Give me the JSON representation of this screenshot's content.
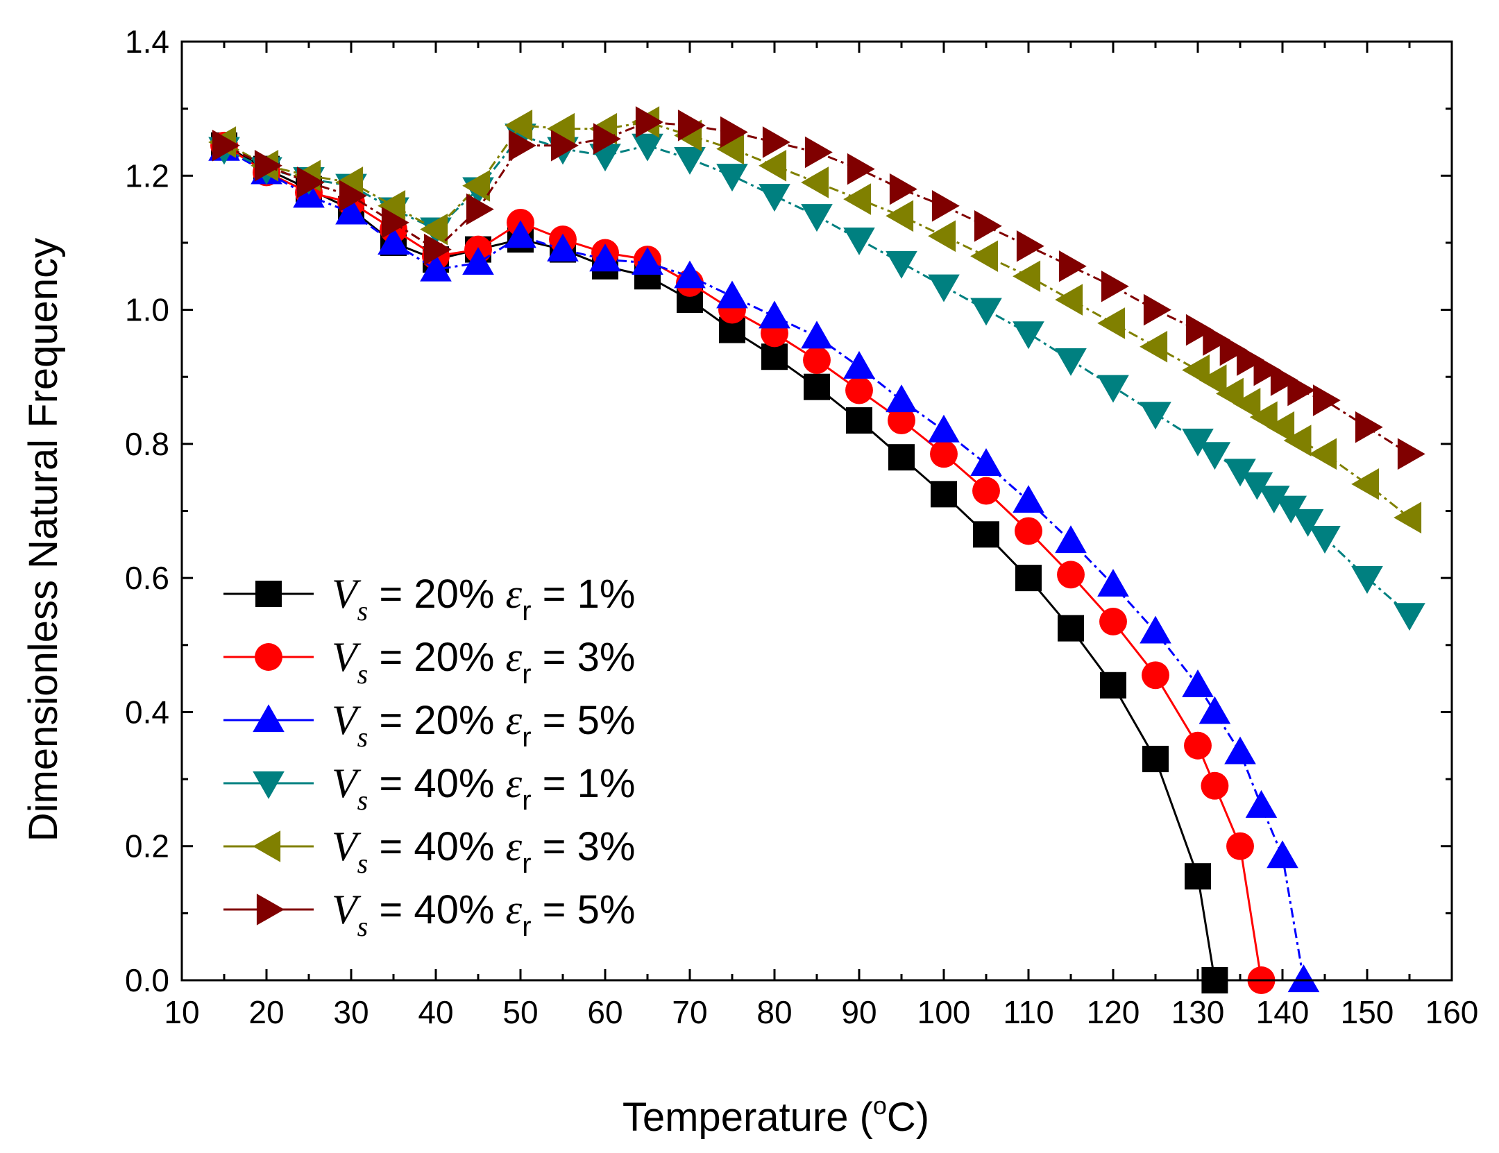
{
  "chart_data": {
    "type": "line",
    "title": "",
    "xlabel": "Temperature (",
    "xlabel_unit": "C)",
    "xlabel_degree": "o",
    "ylabel": "Dimensionless Natural Frequency",
    "xlim": [
      10,
      160
    ],
    "ylim": [
      0.0,
      1.4
    ],
    "xticks": [
      "10",
      "20",
      "30",
      "40",
      "50",
      "60",
      "70",
      "80",
      "90",
      "100",
      "110",
      "120",
      "130",
      "140",
      "150",
      "160"
    ],
    "yticks": [
      "0.0",
      "0.2",
      "0.4",
      "0.6",
      "0.8",
      "1.0",
      "1.2",
      "1.4"
    ],
    "legend_position": "lower-left",
    "series": [
      {
        "name": "V_s = 20%  ε_r = 1%",
        "vs_label": "V",
        "vs_sub": "s",
        "vs_value": "= 20%",
        "er_label": "ε",
        "er_sub": "r",
        "er_value": "= 1%",
        "marker": "square",
        "color": "#000000",
        "x": [
          15,
          20,
          25,
          30,
          35,
          40,
          45,
          50,
          55,
          60,
          65,
          70,
          75,
          80,
          85,
          90,
          95,
          100,
          105,
          110,
          115,
          120,
          125,
          130,
          132
        ],
        "y": [
          1.245,
          1.21,
          1.18,
          1.15,
          1.1,
          1.075,
          1.09,
          1.105,
          1.09,
          1.065,
          1.05,
          1.015,
          0.97,
          0.93,
          0.885,
          0.835,
          0.78,
          0.725,
          0.665,
          0.6,
          0.525,
          0.44,
          0.33,
          0.155,
          0.0
        ]
      },
      {
        "name": "V_s = 20%  ε_r = 3%",
        "vs_label": "V",
        "vs_sub": "s",
        "vs_value": "= 20%",
        "er_label": "ε",
        "er_sub": "r",
        "er_value": "= 3%",
        "marker": "circle",
        "color": "#ff0000",
        "x": [
          15,
          20,
          25,
          30,
          35,
          40,
          45,
          50,
          55,
          60,
          65,
          70,
          75,
          80,
          85,
          90,
          95,
          100,
          105,
          110,
          115,
          120,
          125,
          130,
          132,
          135,
          137.5
        ],
        "y": [
          1.245,
          1.205,
          1.175,
          1.16,
          1.12,
          1.08,
          1.09,
          1.13,
          1.105,
          1.085,
          1.075,
          1.04,
          1.0,
          0.965,
          0.925,
          0.88,
          0.835,
          0.785,
          0.73,
          0.67,
          0.605,
          0.535,
          0.455,
          0.35,
          0.29,
          0.2,
          0.0
        ]
      },
      {
        "name": "V_s = 20%  ε_r = 5%",
        "vs_label": "V",
        "vs_sub": "s",
        "vs_value": "= 20%",
        "er_label": "ε",
        "er_sub": "r",
        "er_value": "= 5%",
        "marker": "triangle-up",
        "color": "#0000ff",
        "x": [
          15,
          20,
          25,
          30,
          35,
          40,
          45,
          50,
          55,
          60,
          65,
          70,
          75,
          80,
          85,
          90,
          95,
          100,
          105,
          110,
          115,
          120,
          125,
          130,
          132,
          135,
          137.5,
          140,
          142.5
        ],
        "y": [
          1.24,
          1.205,
          1.17,
          1.145,
          1.1,
          1.06,
          1.07,
          1.11,
          1.09,
          1.075,
          1.07,
          1.05,
          1.02,
          0.99,
          0.96,
          0.915,
          0.865,
          0.82,
          0.77,
          0.715,
          0.655,
          0.59,
          0.52,
          0.44,
          0.4,
          0.34,
          0.26,
          0.185,
          0.0
        ]
      },
      {
        "name": "V_s = 40%  ε_r = 1%",
        "vs_label": "V",
        "vs_sub": "s",
        "vs_value": "= 40%",
        "er_label": "ε",
        "er_sub": "r",
        "er_value": "= 1%",
        "marker": "triangle-down",
        "color": "#008080",
        "x": [
          15,
          20,
          25,
          30,
          35,
          40,
          45,
          50,
          55,
          60,
          65,
          70,
          75,
          80,
          85,
          90,
          95,
          100,
          105,
          110,
          115,
          120,
          125,
          130,
          132,
          135,
          137,
          139,
          141,
          143,
          145,
          150,
          155
        ],
        "y": [
          1.24,
          1.21,
          1.195,
          1.185,
          1.15,
          1.12,
          1.18,
          1.26,
          1.24,
          1.23,
          1.245,
          1.225,
          1.2,
          1.17,
          1.14,
          1.105,
          1.07,
          1.035,
          1.0,
          0.965,
          0.925,
          0.885,
          0.845,
          0.805,
          0.785,
          0.76,
          0.74,
          0.72,
          0.705,
          0.685,
          0.66,
          0.6,
          0.545
        ]
      },
      {
        "name": "V_s = 40%  ε_r = 3%",
        "vs_label": "V",
        "vs_sub": "s",
        "vs_value": "= 40%",
        "er_label": "ε",
        "er_sub": "r",
        "er_value": "= 3%",
        "marker": "triangle-left",
        "color": "#808000",
        "x": [
          15,
          20,
          25,
          30,
          35,
          40,
          45,
          50,
          55,
          60,
          65,
          70,
          75,
          80,
          85,
          90,
          95,
          100,
          105,
          110,
          115,
          120,
          125,
          130,
          132,
          134,
          136,
          138,
          140,
          142,
          145,
          150,
          155
        ],
        "y": [
          1.25,
          1.215,
          1.2,
          1.19,
          1.155,
          1.12,
          1.185,
          1.275,
          1.27,
          1.27,
          1.28,
          1.26,
          1.24,
          1.215,
          1.19,
          1.165,
          1.14,
          1.11,
          1.08,
          1.05,
          1.015,
          0.98,
          0.945,
          0.91,
          0.895,
          0.875,
          0.86,
          0.84,
          0.825,
          0.805,
          0.785,
          0.74,
          0.69
        ]
      },
      {
        "name": "V_s = 40%  ε_r = 5%",
        "vs_label": "V",
        "vs_sub": "s",
        "vs_value": "= 40%",
        "er_label": "ε",
        "er_sub": "r",
        "er_value": "= 5%",
        "marker": "triangle-right",
        "color": "#800000",
        "x": [
          15,
          20,
          25,
          30,
          35,
          40,
          45,
          50,
          55,
          60,
          65,
          70,
          75,
          80,
          85,
          90,
          95,
          100,
          105,
          110,
          115,
          120,
          125,
          130,
          132,
          134,
          136,
          138,
          140,
          142,
          145,
          150,
          155
        ],
        "y": [
          1.245,
          1.215,
          1.19,
          1.17,
          1.13,
          1.09,
          1.15,
          1.245,
          1.245,
          1.255,
          1.28,
          1.275,
          1.265,
          1.25,
          1.235,
          1.21,
          1.18,
          1.155,
          1.125,
          1.095,
          1.065,
          1.035,
          1.0,
          0.97,
          0.955,
          0.94,
          0.925,
          0.91,
          0.895,
          0.88,
          0.865,
          0.825,
          0.785
        ]
      }
    ]
  }
}
